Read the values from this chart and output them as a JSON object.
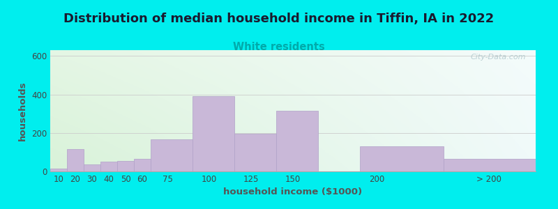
{
  "title": "Distribution of median household income in Tiffin, IA in 2022",
  "subtitle": "White residents",
  "xlabel": "household income ($1000)",
  "ylabel": "households",
  "background_outer": "#00EEEE",
  "background_inner_left": "#d8edd8",
  "background_inner_right": "#eaf5f5",
  "background_inner_top": "#eaf5f5",
  "background_inner_bottom": "#ffffff",
  "bar_color": "#c9b8d8",
  "bar_edgecolor": "#b0a0c8",
  "title_fontsize": 13,
  "subtitle_fontsize": 10.5,
  "subtitle_color": "#00aaaa",
  "label_fontsize": 9.5,
  "tick_fontsize": 8.5,
  "tick_color": "#444444",
  "ylabel_color": "#555555",
  "xlabel_color": "#555555",
  "watermark": "City-Data.com",
  "values": [
    15,
    115,
    35,
    50,
    55,
    65,
    165,
    390,
    195,
    315,
    130,
    65
  ],
  "bar_lefts": [
    5,
    15,
    25,
    35,
    45,
    55,
    65,
    90,
    115,
    140,
    190,
    240
  ],
  "bar_widths": [
    10,
    10,
    10,
    10,
    10,
    10,
    25,
    25,
    25,
    25,
    50,
    55
  ],
  "xlim": [
    5,
    295
  ],
  "ylim": [
    0,
    630
  ],
  "yticks": [
    0,
    200,
    400,
    600
  ],
  "xticks": [
    10,
    20,
    30,
    40,
    50,
    60,
    75,
    100,
    125,
    150,
    200,
    267
  ],
  "xticklabels": [
    "10",
    "20",
    "30",
    "40",
    "50",
    "60",
    "75",
    "100",
    "125",
    "150",
    "200",
    "> 200"
  ]
}
